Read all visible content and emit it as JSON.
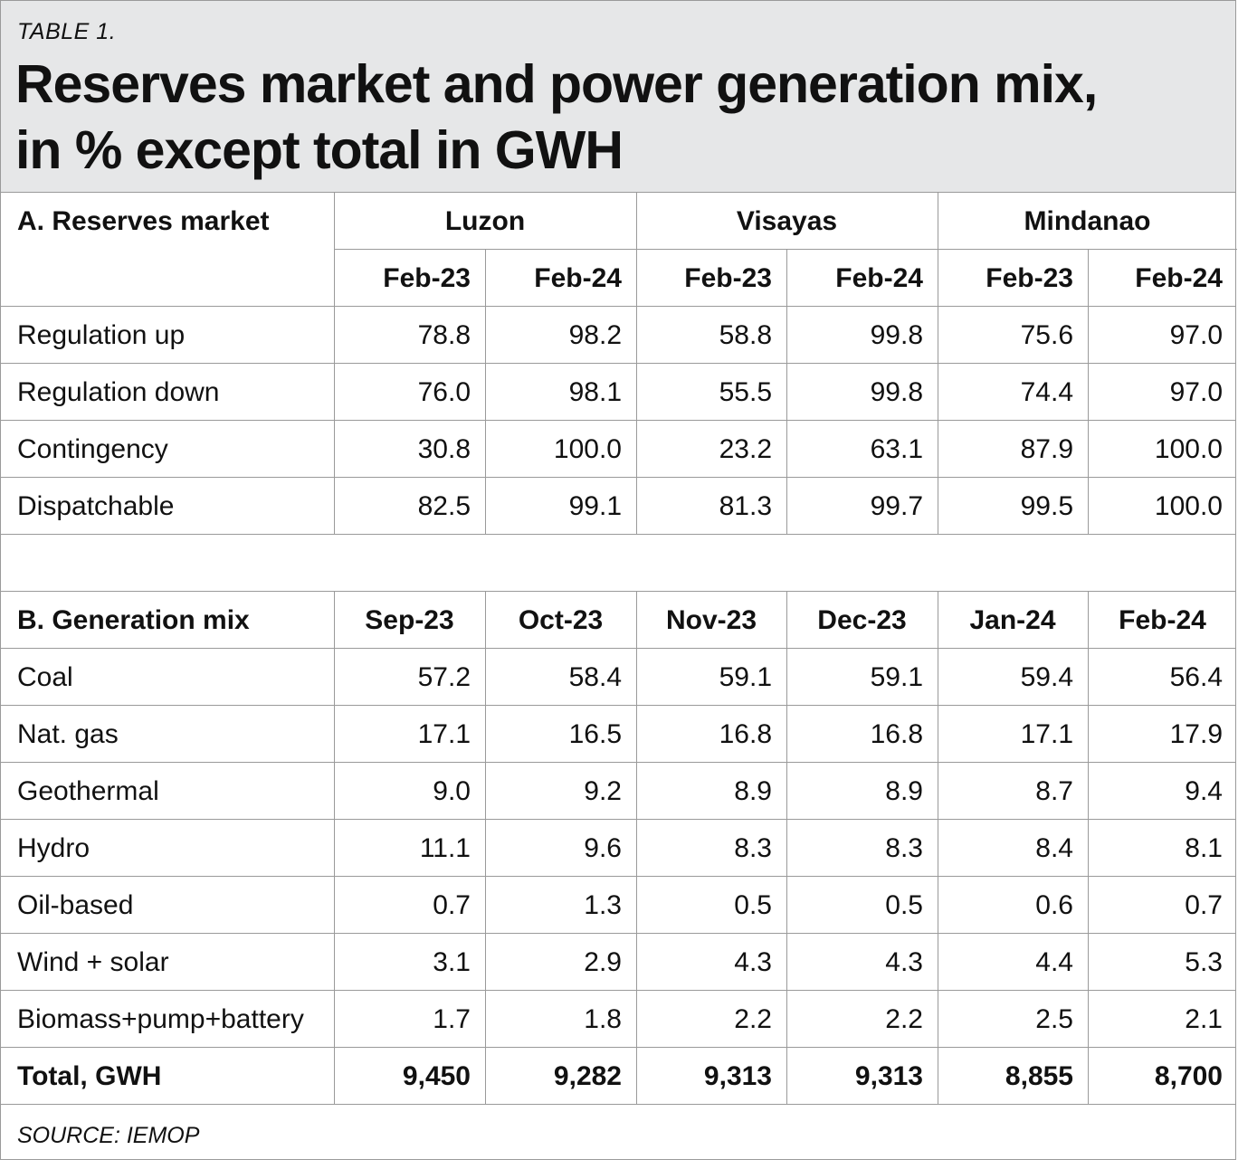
{
  "table_label": "TABLE 1.",
  "title_line1": "Reserves market and power generation mix,",
  "title_line2": "in % except total in GWH",
  "source": "SOURCE: IEMOP",
  "chart_data": {
    "type": "table",
    "title": "Reserves market and power generation mix, in % except total in GWH",
    "sections": [
      {
        "name": "A. Reserves market",
        "groups": [
          "Luzon",
          "Visayas",
          "Mindanao"
        ],
        "columns": [
          "Feb-23",
          "Feb-24",
          "Feb-23",
          "Feb-24",
          "Feb-23",
          "Feb-24"
        ],
        "rows": [
          {
            "label": "Regulation up",
            "values": [
              "78.8",
              "98.2",
              "58.8",
              "99.8",
              "75.6",
              "97.0"
            ]
          },
          {
            "label": "Regulation down",
            "values": [
              "76.0",
              "98.1",
              "55.5",
              "99.8",
              "74.4",
              "97.0"
            ]
          },
          {
            "label": "Contingency",
            "values": [
              "30.8",
              "100.0",
              "23.2",
              "63.1",
              "87.9",
              "100.0"
            ]
          },
          {
            "label": "Dispatchable",
            "values": [
              "82.5",
              "99.1",
              "81.3",
              "99.7",
              "99.5",
              "100.0"
            ]
          }
        ]
      },
      {
        "name": "B. Generation mix",
        "columns": [
          "Sep-23",
          "Oct-23",
          "Nov-23",
          "Dec-23",
          "Jan-24",
          "Feb-24"
        ],
        "rows": [
          {
            "label": "Coal",
            "values": [
              "57.2",
              "58.4",
              "59.1",
              "59.1",
              "59.4",
              "56.4"
            ]
          },
          {
            "label": "Nat. gas",
            "values": [
              "17.1",
              "16.5",
              "16.8",
              "16.8",
              "17.1",
              "17.9"
            ]
          },
          {
            "label": "Geothermal",
            "values": [
              "9.0",
              "9.2",
              "8.9",
              "8.9",
              "8.7",
              "9.4"
            ]
          },
          {
            "label": "Hydro",
            "values": [
              "11.1",
              "9.6",
              "8.3",
              "8.3",
              "8.4",
              "8.1"
            ]
          },
          {
            "label": "Oil-based",
            "values": [
              "0.7",
              "1.3",
              "0.5",
              "0.5",
              "0.6",
              "0.7"
            ]
          },
          {
            "label": "Wind + solar",
            "values": [
              "3.1",
              "2.9",
              "4.3",
              "4.3",
              "4.4",
              "5.3"
            ]
          },
          {
            "label": "Biomass+pump+battery",
            "values": [
              "1.7",
              "1.8",
              "2.2",
              "2.2",
              "2.5",
              "2.1"
            ]
          }
        ],
        "total": {
          "label": "Total, GWH",
          "values": [
            "9,450",
            "9,282",
            "9,313",
            "9,313",
            "8,855",
            "8,700"
          ]
        }
      }
    ]
  }
}
